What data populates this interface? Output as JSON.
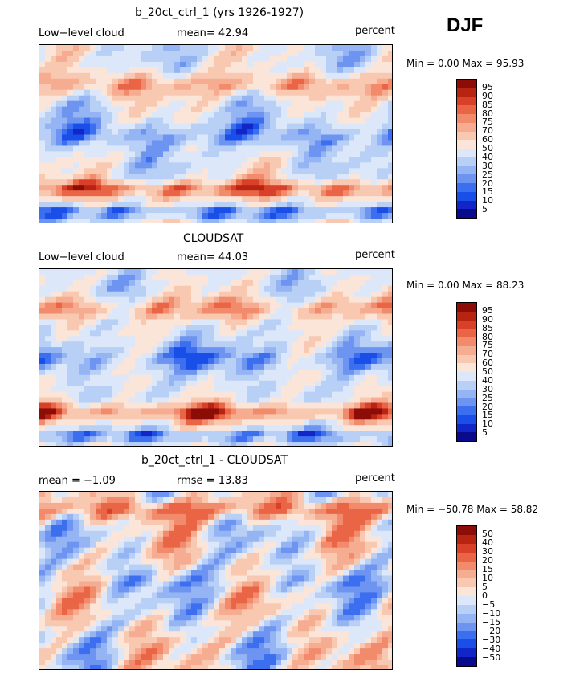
{
  "season": "DJF",
  "palette_abs": [
    "#0a0a8c",
    "#1226c8",
    "#1a4ee8",
    "#3c6ef0",
    "#6c94f0",
    "#94b4f4",
    "#b8d0f6",
    "#dce8fa",
    "#fbe4d8",
    "#f8c8b0",
    "#f6ac90",
    "#f28a6c",
    "#ea6446",
    "#d8402a",
    "#b82412",
    "#8c0c08"
  ],
  "palette_diff": [
    "#0a0a8c",
    "#1226c8",
    "#1a4ee8",
    "#3c6ef0",
    "#6c94f0",
    "#94b4f4",
    "#b8d0f6",
    "#dce8fa",
    "#fbe4d8",
    "#f8c8b0",
    "#f6ac90",
    "#f28a6c",
    "#ea6446",
    "#d8402a",
    "#b82412",
    "#8c0c08"
  ],
  "panels": [
    {
      "title": "b_20ct_ctrl_1 (yrs 1926-1927)",
      "left_label": "Low−level cloud",
      "mid_label": "mean=  42.94",
      "units": "percent",
      "minmax": "Min =    0.00 Max =  95.93",
      "colorbar_ticks": [
        "95",
        "90",
        "85",
        "80",
        "75",
        "70",
        "60",
        "50",
        "40",
        "30",
        "25",
        "20",
        "15",
        "10",
        "5"
      ]
    },
    {
      "title": "CLOUDSAT",
      "left_label": "Low−level cloud",
      "mid_label": "mean=  44.03",
      "units": "percent",
      "minmax": "Min =    0.00 Max =  88.23",
      "colorbar_ticks": [
        "95",
        "90",
        "85",
        "80",
        "75",
        "70",
        "60",
        "50",
        "40",
        "30",
        "25",
        "20",
        "15",
        "10",
        "5"
      ]
    },
    {
      "title": "b_20ct_ctrl_1 - CLOUDSAT",
      "left_label": "mean =  −1.09",
      "mid_label": "rmse =  13.83",
      "units": "percent",
      "minmax": "Min = −50.78 Max =  58.82",
      "colorbar_ticks": [
        "50",
        "40",
        "30",
        "20",
        "15",
        "10",
        "5",
        "0",
        "−5",
        "−10",
        "−15",
        "−20",
        "−30",
        "−40",
        "−50"
      ]
    }
  ],
  "chart_data": [
    {
      "type": "heatmap",
      "title": "b_20ct_ctrl_1 (yrs 1926-1927)",
      "variable": "Low-level cloud",
      "units": "percent",
      "mean": 42.94,
      "min": 0.0,
      "max": 95.93,
      "levels": [
        5,
        10,
        15,
        20,
        25,
        30,
        40,
        50,
        60,
        70,
        75,
        80,
        85,
        90,
        95
      ]
    },
    {
      "type": "heatmap",
      "title": "CLOUDSAT",
      "variable": "Low-level cloud",
      "units": "percent",
      "mean": 44.03,
      "min": 0.0,
      "max": 88.23,
      "levels": [
        5,
        10,
        15,
        20,
        25,
        30,
        40,
        50,
        60,
        70,
        75,
        80,
        85,
        90,
        95
      ]
    },
    {
      "type": "heatmap",
      "title": "b_20ct_ctrl_1 - CLOUDSAT",
      "units": "percent",
      "mean": -1.09,
      "rmse": 13.83,
      "min": -50.78,
      "max": 58.82,
      "levels": [
        -50,
        -40,
        -30,
        -20,
        -15,
        -10,
        -5,
        0,
        5,
        10,
        15,
        20,
        30,
        40,
        50
      ]
    }
  ]
}
